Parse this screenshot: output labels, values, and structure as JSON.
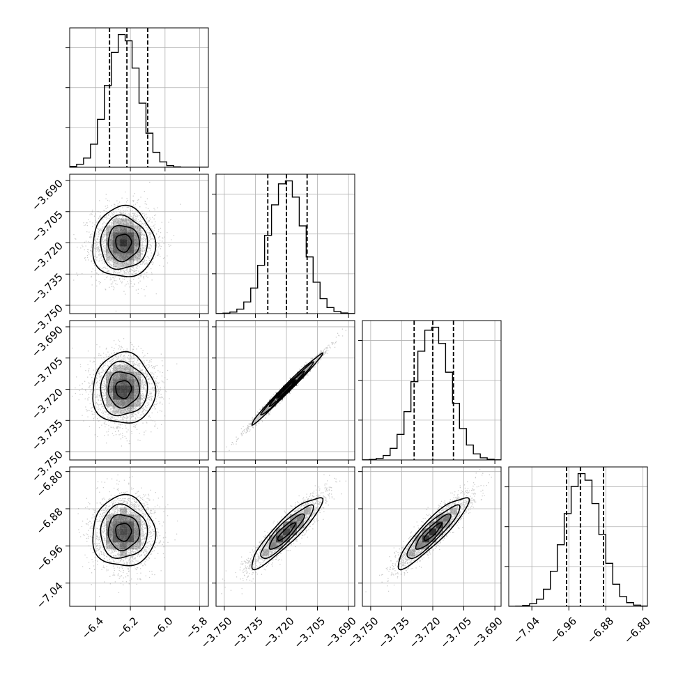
{
  "chart_data": {
    "type": "corner",
    "parameters": [
      {
        "range": [
          -6.55,
          -5.75
        ],
        "ticks": [
          -6.4,
          -6.2,
          -6.0,
          -5.8
        ],
        "tick_labels": [
          "−6.4",
          "−6.2",
          "−6.0",
          "−5.8"
        ],
        "mean": -6.24,
        "std": 0.09,
        "quantiles": [
          -6.32,
          -6.22,
          -6.1
        ]
      },
      {
        "range": [
          -3.754,
          -3.687
        ],
        "ticks": [
          -3.75,
          -3.735,
          -3.72,
          -3.705,
          -3.69
        ],
        "tick_labels": [
          "−3.750",
          "−3.735",
          "−3.720",
          "−3.705",
          "−3.690"
        ],
        "mean": -3.72,
        "std": 0.0085,
        "quantiles": [
          -3.729,
          -3.72,
          -3.71
        ]
      },
      {
        "range": [
          -3.754,
          -3.687
        ],
        "ticks": [
          -3.75,
          -3.735,
          -3.72,
          -3.705,
          -3.69
        ],
        "tick_labels": [
          "−3.750",
          "−3.735",
          "−3.720",
          "−3.705",
          "−3.690"
        ],
        "mean": -3.72,
        "std": 0.0085,
        "quantiles": [
          -3.729,
          -3.72,
          -3.71
        ]
      },
      {
        "range": [
          -7.09,
          -6.79
        ],
        "ticks": [
          -7.04,
          -6.96,
          -6.88,
          -6.8
        ],
        "tick_labels": [
          "−7.04",
          "−6.96",
          "−6.88",
          "−6.80"
        ],
        "mean": -6.93,
        "std": 0.038,
        "quantiles": [
          -6.965,
          -6.935,
          -6.885
        ]
      }
    ],
    "correlations": [
      {
        "i": 1,
        "j": 0,
        "rho": 0.0
      },
      {
        "i": 2,
        "j": 0,
        "rho": 0.0
      },
      {
        "i": 2,
        "j": 1,
        "rho": 0.99
      },
      {
        "i": 3,
        "j": 0,
        "rho": 0.0
      },
      {
        "i": 3,
        "j": 1,
        "rho": 0.9
      },
      {
        "i": 3,
        "j": 2,
        "rho": 0.9
      }
    ],
    "contour_levels_sigma": [
      0.5,
      1.0,
      1.5,
      2.0
    ],
    "grid": true,
    "colors": {
      "points": "#9a9a9a",
      "contour": "#000000",
      "bins": "#000000"
    }
  }
}
